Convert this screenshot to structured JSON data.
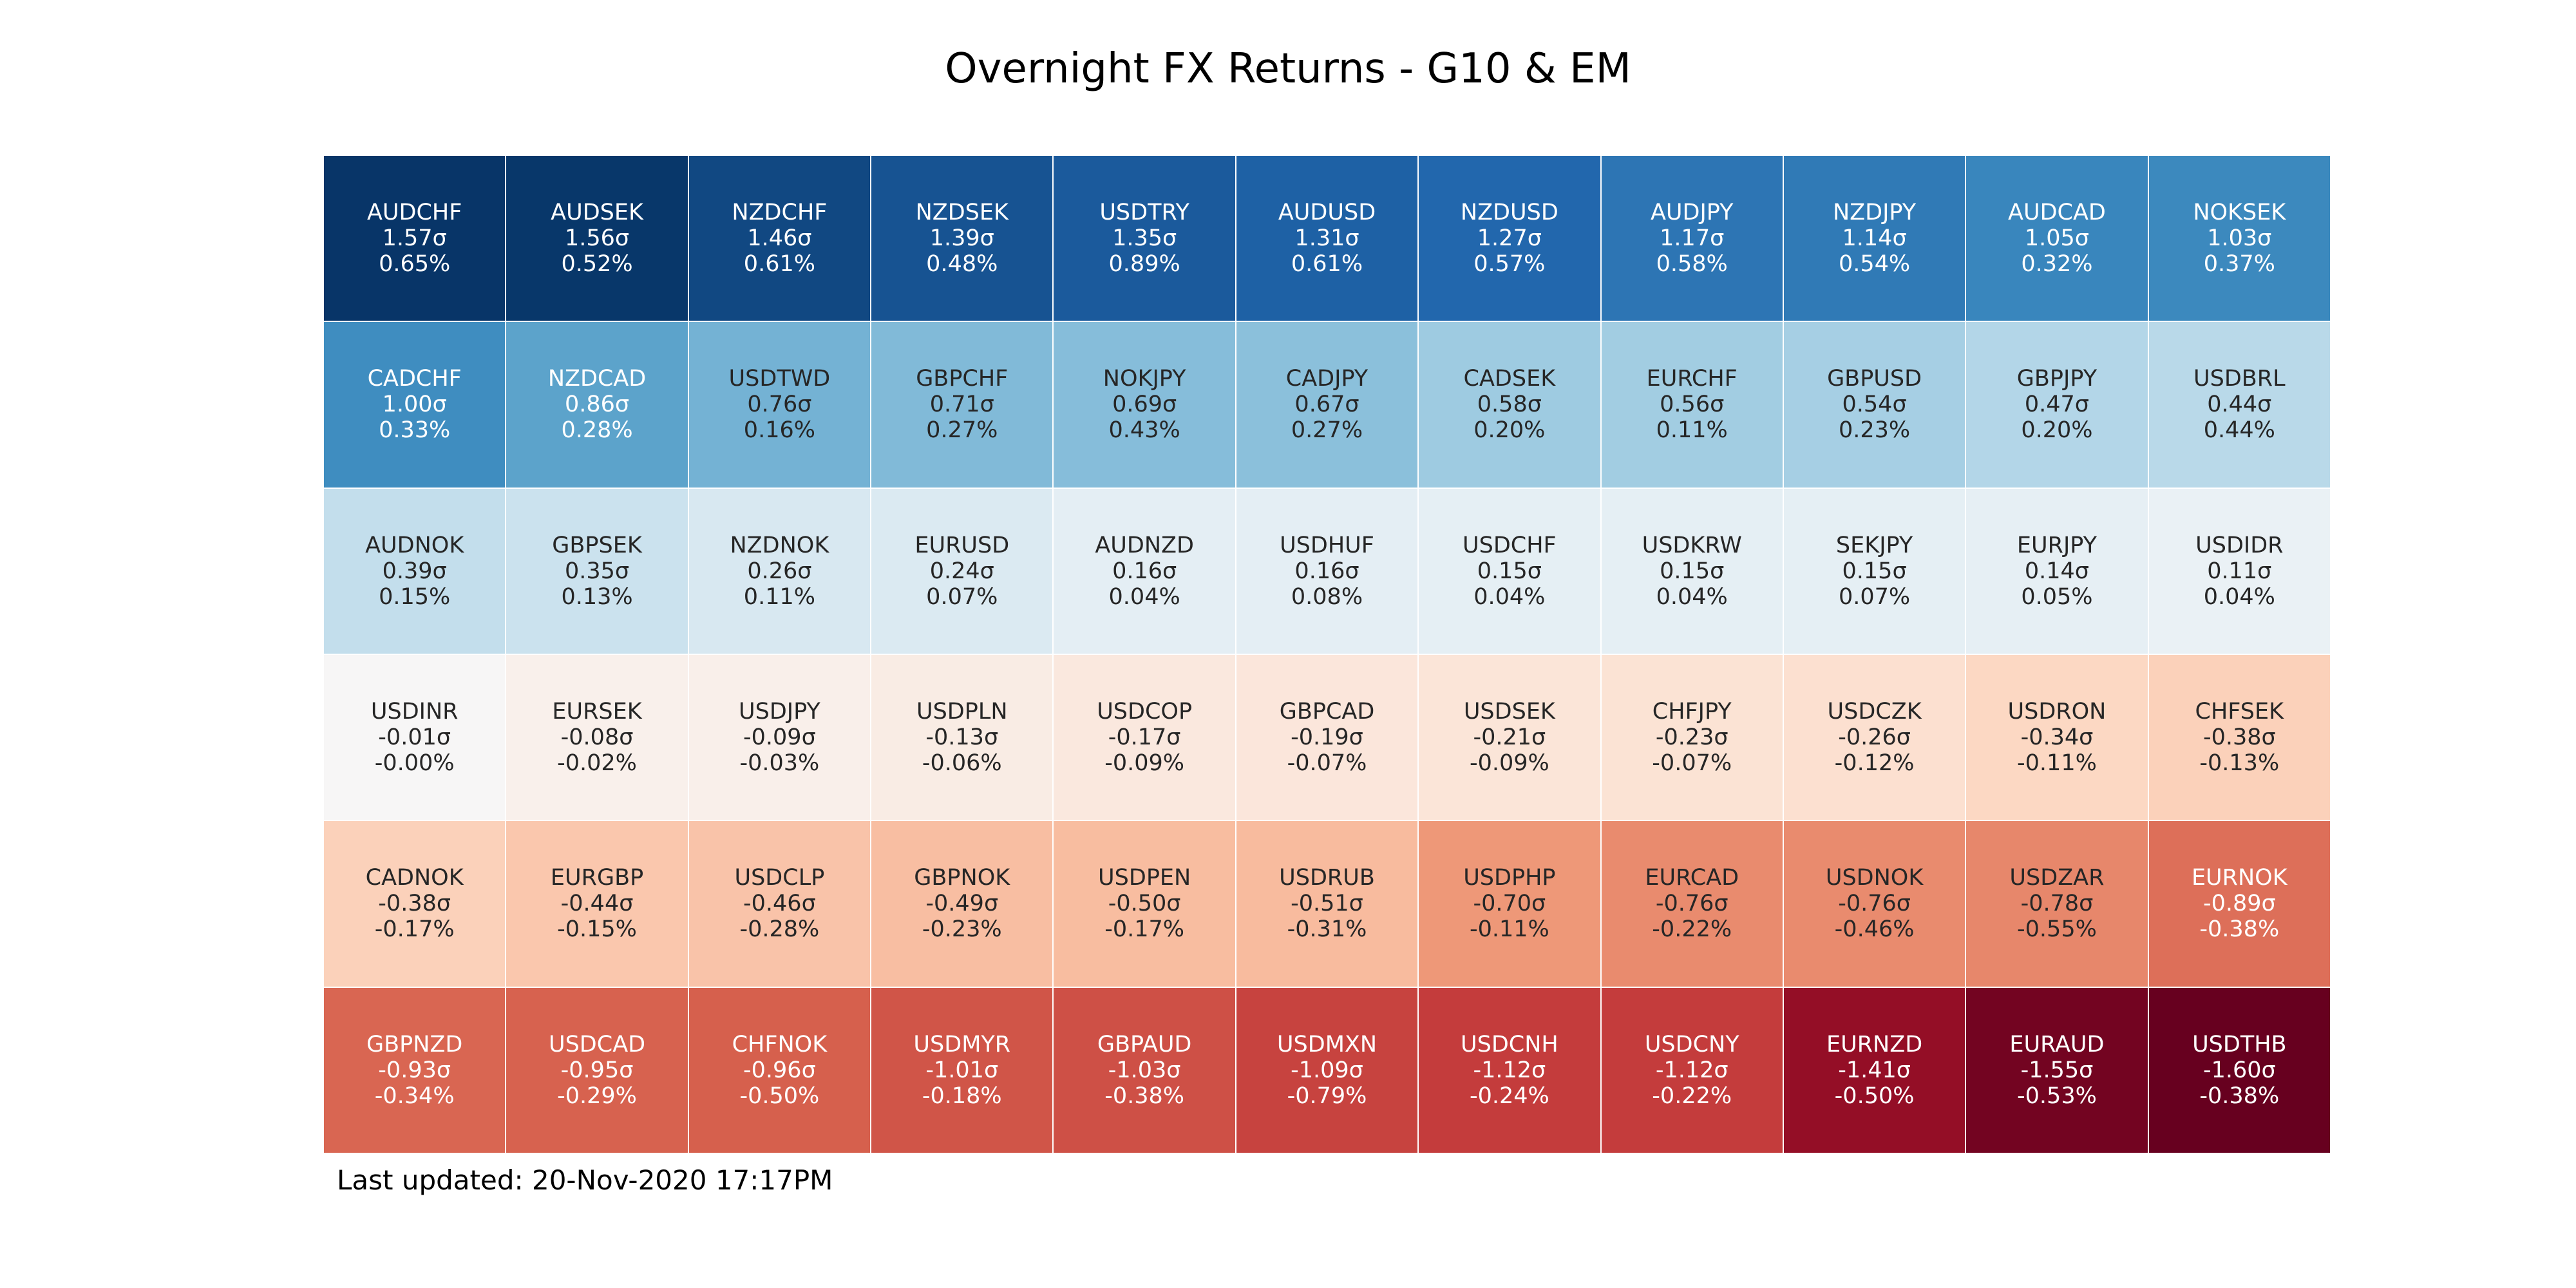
{
  "title": "Overnight FX Returns - G10 & EM",
  "footer": "Last updated: 20-Nov-2020 17:17PM",
  "colors": {
    "strong_positive": "#053061",
    "neutral": "#f7f7f7",
    "strong_negative": "#67001f"
  },
  "chart_data": {
    "type": "heatmap",
    "title": "Overnight FX Returns - G10 & EM",
    "rows": 6,
    "columns": 11,
    "cells": [
      {
        "pair": "AUDCHF",
        "sigma": "1.57σ",
        "ret": "0.65%",
        "z": 1.57
      },
      {
        "pair": "AUDSEK",
        "sigma": "1.56σ",
        "ret": "0.52%",
        "z": 1.56
      },
      {
        "pair": "NZDCHF",
        "sigma": "1.46σ",
        "ret": "0.61%",
        "z": 1.46
      },
      {
        "pair": "NZDSEK",
        "sigma": "1.39σ",
        "ret": "0.48%",
        "z": 1.39
      },
      {
        "pair": "USDTRY",
        "sigma": "1.35σ",
        "ret": "0.89%",
        "z": 1.35
      },
      {
        "pair": "AUDUSD",
        "sigma": "1.31σ",
        "ret": "0.61%",
        "z": 1.31
      },
      {
        "pair": "NZDUSD",
        "sigma": "1.27σ",
        "ret": "0.57%",
        "z": 1.27
      },
      {
        "pair": "AUDJPY",
        "sigma": "1.17σ",
        "ret": "0.58%",
        "z": 1.17
      },
      {
        "pair": "NZDJPY",
        "sigma": "1.14σ",
        "ret": "0.54%",
        "z": 1.14
      },
      {
        "pair": "AUDCAD",
        "sigma": "1.05σ",
        "ret": "0.32%",
        "z": 1.05
      },
      {
        "pair": "NOKSEK",
        "sigma": "1.03σ",
        "ret": "0.37%",
        "z": 1.03
      },
      {
        "pair": "CADCHF",
        "sigma": "1.00σ",
        "ret": "0.33%",
        "z": 1.0
      },
      {
        "pair": "NZDCAD",
        "sigma": "0.86σ",
        "ret": "0.28%",
        "z": 0.86
      },
      {
        "pair": "USDTWD",
        "sigma": "0.76σ",
        "ret": "0.16%",
        "z": 0.76
      },
      {
        "pair": "GBPCHF",
        "sigma": "0.71σ",
        "ret": "0.27%",
        "z": 0.71
      },
      {
        "pair": "NOKJPY",
        "sigma": "0.69σ",
        "ret": "0.43%",
        "z": 0.69
      },
      {
        "pair": "CADJPY",
        "sigma": "0.67σ",
        "ret": "0.27%",
        "z": 0.67
      },
      {
        "pair": "CADSEK",
        "sigma": "0.58σ",
        "ret": "0.20%",
        "z": 0.58
      },
      {
        "pair": "EURCHF",
        "sigma": "0.56σ",
        "ret": "0.11%",
        "z": 0.56
      },
      {
        "pair": "GBPUSD",
        "sigma": "0.54σ",
        "ret": "0.23%",
        "z": 0.54
      },
      {
        "pair": "GBPJPY",
        "sigma": "0.47σ",
        "ret": "0.20%",
        "z": 0.47
      },
      {
        "pair": "USDBRL",
        "sigma": "0.44σ",
        "ret": "0.44%",
        "z": 0.44
      },
      {
        "pair": "AUDNOK",
        "sigma": "0.39σ",
        "ret": "0.15%",
        "z": 0.39
      },
      {
        "pair": "GBPSEK",
        "sigma": "0.35σ",
        "ret": "0.13%",
        "z": 0.35
      },
      {
        "pair": "NZDNOK",
        "sigma": "0.26σ",
        "ret": "0.11%",
        "z": 0.26
      },
      {
        "pair": "EURUSD",
        "sigma": "0.24σ",
        "ret": "0.07%",
        "z": 0.24
      },
      {
        "pair": "AUDNZD",
        "sigma": "0.16σ",
        "ret": "0.04%",
        "z": 0.16
      },
      {
        "pair": "USDHUF",
        "sigma": "0.16σ",
        "ret": "0.08%",
        "z": 0.16
      },
      {
        "pair": "USDCHF",
        "sigma": "0.15σ",
        "ret": "0.04%",
        "z": 0.15
      },
      {
        "pair": "USDKRW",
        "sigma": "0.15σ",
        "ret": "0.04%",
        "z": 0.15
      },
      {
        "pair": "SEKJPY",
        "sigma": "0.15σ",
        "ret": "0.07%",
        "z": 0.15
      },
      {
        "pair": "EURJPY",
        "sigma": "0.14σ",
        "ret": "0.05%",
        "z": 0.14
      },
      {
        "pair": "USDIDR",
        "sigma": "0.11σ",
        "ret": "0.04%",
        "z": 0.11
      },
      {
        "pair": "USDINR",
        "sigma": "-0.01σ",
        "ret": "-0.00%",
        "z": -0.01
      },
      {
        "pair": "EURSEK",
        "sigma": "-0.08σ",
        "ret": "-0.02%",
        "z": -0.08
      },
      {
        "pair": "USDJPY",
        "sigma": "-0.09σ",
        "ret": "-0.03%",
        "z": -0.09
      },
      {
        "pair": "USDPLN",
        "sigma": "-0.13σ",
        "ret": "-0.06%",
        "z": -0.13
      },
      {
        "pair": "USDCOP",
        "sigma": "-0.17σ",
        "ret": "-0.09%",
        "z": -0.17
      },
      {
        "pair": "GBPCAD",
        "sigma": "-0.19σ",
        "ret": "-0.07%",
        "z": -0.19
      },
      {
        "pair": "USDSEK",
        "sigma": "-0.21σ",
        "ret": "-0.09%",
        "z": -0.21
      },
      {
        "pair": "CHFJPY",
        "sigma": "-0.23σ",
        "ret": "-0.07%",
        "z": -0.23
      },
      {
        "pair": "USDCZK",
        "sigma": "-0.26σ",
        "ret": "-0.12%",
        "z": -0.26
      },
      {
        "pair": "USDRON",
        "sigma": "-0.34σ",
        "ret": "-0.11%",
        "z": -0.34
      },
      {
        "pair": "CHFSEK",
        "sigma": "-0.38σ",
        "ret": "-0.13%",
        "z": -0.38
      },
      {
        "pair": "CADNOK",
        "sigma": "-0.38σ",
        "ret": "-0.17%",
        "z": -0.38
      },
      {
        "pair": "EURGBP",
        "sigma": "-0.44σ",
        "ret": "-0.15%",
        "z": -0.44
      },
      {
        "pair": "USDCLP",
        "sigma": "-0.46σ",
        "ret": "-0.28%",
        "z": -0.46
      },
      {
        "pair": "GBPNOK",
        "sigma": "-0.49σ",
        "ret": "-0.23%",
        "z": -0.49
      },
      {
        "pair": "USDPEN",
        "sigma": "-0.50σ",
        "ret": "-0.17%",
        "z": -0.5
      },
      {
        "pair": "USDRUB",
        "sigma": "-0.51σ",
        "ret": "-0.31%",
        "z": -0.51
      },
      {
        "pair": "USDPHP",
        "sigma": "-0.70σ",
        "ret": "-0.11%",
        "z": -0.7
      },
      {
        "pair": "EURCAD",
        "sigma": "-0.76σ",
        "ret": "-0.22%",
        "z": -0.76
      },
      {
        "pair": "USDNOK",
        "sigma": "-0.76σ",
        "ret": "-0.46%",
        "z": -0.76
      },
      {
        "pair": "USDZAR",
        "sigma": "-0.78σ",
        "ret": "-0.55%",
        "z": -0.78
      },
      {
        "pair": "EURNOK",
        "sigma": "-0.89σ",
        "ret": "-0.38%",
        "z": -0.89
      },
      {
        "pair": "GBPNZD",
        "sigma": "-0.93σ",
        "ret": "-0.34%",
        "z": -0.93
      },
      {
        "pair": "USDCAD",
        "sigma": "-0.95σ",
        "ret": "-0.29%",
        "z": -0.95
      },
      {
        "pair": "CHFNOK",
        "sigma": "-0.96σ",
        "ret": "-0.50%",
        "z": -0.96
      },
      {
        "pair": "USDMYR",
        "sigma": "-1.01σ",
        "ret": "-0.18%",
        "z": -1.01
      },
      {
        "pair": "GBPAUD",
        "sigma": "-1.03σ",
        "ret": "-0.38%",
        "z": -1.03
      },
      {
        "pair": "USDMXN",
        "sigma": "-1.09σ",
        "ret": "-0.79%",
        "z": -1.09
      },
      {
        "pair": "USDCNH",
        "sigma": "-1.12σ",
        "ret": "-0.24%",
        "z": -1.12
      },
      {
        "pair": "USDCNY",
        "sigma": "-1.12σ",
        "ret": "-0.22%",
        "z": -1.12
      },
      {
        "pair": "EURNZD",
        "sigma": "-1.41σ",
        "ret": "-0.50%",
        "z": -1.41
      },
      {
        "pair": "EURAUD",
        "sigma": "-1.55σ",
        "ret": "-0.53%",
        "z": -1.55
      },
      {
        "pair": "USDTHB",
        "sigma": "-1.60σ",
        "ret": "-0.38%",
        "z": -1.6
      }
    ]
  }
}
